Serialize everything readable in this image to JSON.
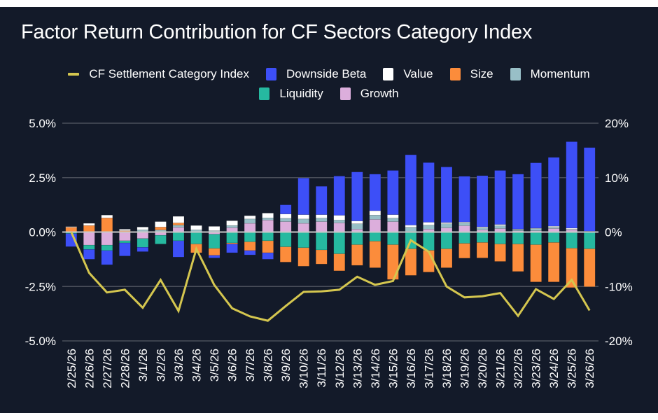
{
  "chart_data": {
    "type": "bar",
    "stacked": true,
    "title": "Factor Return Contribution for CF Sectors Category Index",
    "xlabel": "",
    "ylabel_left": "",
    "ylabel_right": "",
    "ylim_left": [
      -5.0,
      5.0
    ],
    "ylim_right": [
      -20,
      20
    ],
    "yticks_left": [
      "5.0%",
      "2.5%",
      "0.0%",
      "-2.5%",
      "-5.0%"
    ],
    "yticks_right": [
      "20%",
      "10%",
      "0%",
      "-10%",
      "-20%"
    ],
    "grid": true,
    "legend_placement": "top-center",
    "categories": [
      "2/25/26",
      "2/26/26",
      "2/27/26",
      "2/28/26",
      "3/1/26",
      "3/2/26",
      "3/3/26",
      "3/4/26",
      "3/5/26",
      "3/6/26",
      "3/7/26",
      "3/8/26",
      "3/9/26",
      "3/10/26",
      "3/11/26",
      "3/12/26",
      "3/13/26",
      "3/14/26",
      "3/15/26",
      "3/16/26",
      "3/17/26",
      "3/18/26",
      "3/19/26",
      "3/20/26",
      "3/21/26",
      "3/22/26",
      "3/23/26",
      "3/24/26",
      "3/25/26",
      "3/26/26"
    ],
    "series": [
      {
        "name": "Downside Beta",
        "type": "bar",
        "axis": "left",
        "color": "#3d4ff7",
        "values": [
          -0.6,
          -0.45,
          -0.65,
          -0.6,
          -0.2,
          0,
          -0.75,
          0,
          -0.12,
          -0.4,
          -0.2,
          -0.3,
          0.42,
          1.68,
          1.3,
          1.8,
          2.25,
          1.68,
          2.03,
          3.23,
          2.74,
          2.55,
          2.1,
          2.35,
          2.48,
          2.52,
          3.0,
          3.16,
          3.97,
          3.84
        ]
      },
      {
        "name": "Value",
        "type": "bar",
        "axis": "left",
        "color": "#ffffff",
        "values": [
          0.03,
          0.1,
          0.13,
          0.07,
          0.13,
          0.25,
          0.3,
          0.2,
          0.2,
          0.22,
          0.15,
          0.22,
          0.2,
          0.2,
          0.16,
          0.22,
          0.13,
          0.2,
          0.16,
          0.1,
          0.13,
          0.06,
          0.04,
          0.04,
          0.06,
          0.02,
          0.02,
          0.05,
          0.06,
          0.04
        ]
      },
      {
        "name": "Size",
        "type": "bar",
        "axis": "left",
        "color": "#fc8c3b",
        "values": [
          0.2,
          0.3,
          0.65,
          0.06,
          0,
          0.13,
          0.1,
          -0.4,
          -0.32,
          -0.05,
          -0.4,
          -0.55,
          -0.7,
          -0.85,
          -0.65,
          -0.78,
          -0.95,
          -1.22,
          -1.6,
          -1.22,
          -1.0,
          -0.87,
          -0.68,
          -0.71,
          -0.8,
          -1.26,
          -1.71,
          -1.81,
          -1.81,
          -1.74
        ]
      },
      {
        "name": "Momentum",
        "type": "bar",
        "axis": "left",
        "color": "#98bfc7",
        "values": [
          0.02,
          0,
          0,
          0,
          0.1,
          0.1,
          0.1,
          0.1,
          0.06,
          0.1,
          0.2,
          0.1,
          0.15,
          0.2,
          0.16,
          0.13,
          0.25,
          0.2,
          0.16,
          0.19,
          0.19,
          0.19,
          0.13,
          0.1,
          0.13,
          0.06,
          0.1,
          0.06,
          0.02,
          0
        ]
      },
      {
        "name": "Liquidity",
        "type": "bar",
        "axis": "left",
        "color": "#26b9a0",
        "values": [
          -0.07,
          -0.2,
          -0.25,
          -0.1,
          -0.4,
          -0.4,
          -0.4,
          -0.55,
          -0.65,
          -0.5,
          -0.45,
          -0.4,
          -0.68,
          -0.72,
          -0.82,
          -1.0,
          -0.58,
          -0.42,
          -0.58,
          -0.77,
          -0.84,
          -0.77,
          -0.52,
          -0.48,
          -0.55,
          -0.55,
          -0.58,
          -0.48,
          -0.74,
          -0.77
        ]
      },
      {
        "name": "Growth",
        "type": "bar",
        "axis": "left",
        "color": "#dcaedc",
        "values": [
          0,
          -0.6,
          -0.6,
          -0.4,
          -0.3,
          -0.15,
          0.22,
          0,
          -0.1,
          0.2,
          0.4,
          0.55,
          0.48,
          0.4,
          0.48,
          0.42,
          0.13,
          0.58,
          0.48,
          0.03,
          0.13,
          0.19,
          0.29,
          0.1,
          0.16,
          0.06,
          0.06,
          0.16,
          0.1,
          0
        ]
      },
      {
        "name": "CF Settlement Category Index",
        "type": "line",
        "axis": "right",
        "color": "#d4c64f",
        "values": [
          0,
          -7.5,
          -11.1,
          -10.6,
          -13.9,
          -8.8,
          -14.5,
          -3.1,
          -9.7,
          -14.0,
          -15.5,
          -16.3,
          -13.6,
          -11.0,
          -10.9,
          -10.6,
          -8.2,
          -9.7,
          -9.0,
          -1.5,
          -3.6,
          -10.0,
          -12.0,
          -11.8,
          -11.2,
          -15.4,
          -10.5,
          -12.3,
          -8.8,
          -14.4
        ]
      }
    ]
  },
  "legend": {
    "row1": [
      {
        "label": "CF Settlement Category Index",
        "color": "#d4c64f",
        "kind": "line"
      },
      {
        "label": "Downside Beta",
        "color": "#3d4ff7",
        "kind": "box"
      },
      {
        "label": "Value",
        "color": "#ffffff",
        "kind": "box"
      },
      {
        "label": "Size",
        "color": "#fc8c3b",
        "kind": "box"
      },
      {
        "label": "Momentum",
        "color": "#98bfc7",
        "kind": "box"
      }
    ],
    "row2": [
      {
        "label": "Liquidity",
        "color": "#26b9a0",
        "kind": "box"
      },
      {
        "label": "Growth",
        "color": "#dcaedc",
        "kind": "box"
      }
    ]
  },
  "colors": {
    "background": "#131a29",
    "gridline": "#4a4f5a",
    "zero_line": "#c9c9c9",
    "text": "#ffffff"
  }
}
